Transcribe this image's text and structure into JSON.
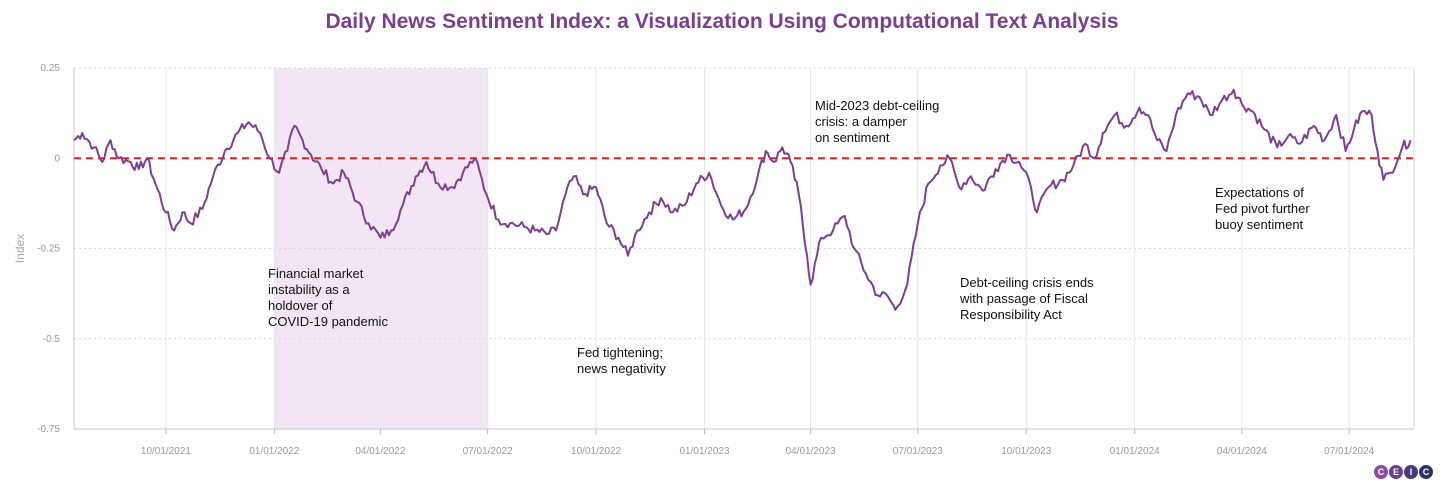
{
  "title": "Daily News Sentiment Index: a Visualization Using Computational Text Analysis",
  "logo": {
    "letters": [
      "C",
      "E",
      "I",
      "C"
    ],
    "colors": [
      "#8a4e9e",
      "#6a3f8c",
      "#4a3a7c",
      "#2f3168"
    ]
  },
  "chart_data": {
    "type": "line",
    "ylabel": "Index",
    "xlabel": "",
    "ylim": [
      -0.75,
      0.25
    ],
    "xlim": [
      "2021-07-15",
      "2024-08-25"
    ],
    "grid": true,
    "yticks": [
      0.25,
      0,
      -0.25,
      -0.5,
      -0.75
    ],
    "ytick_labels": [
      "0.25",
      "0",
      "-0.25",
      "-0.5",
      "-0.75"
    ],
    "xticks": [
      "2021-10-01",
      "2022-01-01",
      "2022-04-01",
      "2022-07-01",
      "2022-10-01",
      "2023-01-01",
      "2023-04-01",
      "2023-07-01",
      "2023-10-01",
      "2024-01-01",
      "2024-04-01",
      "2024-07-01"
    ],
    "xtick_labels": [
      "10/01/2021",
      "01/01/2022",
      "04/01/2022",
      "07/01/2022",
      "10/01/2022",
      "01/01/2023",
      "04/01/2023",
      "07/01/2023",
      "10/01/2023",
      "01/01/2024",
      "04/01/2024",
      "07/01/2024"
    ],
    "reference_line": {
      "y": 0,
      "color": "#e02020",
      "style": "dashed"
    },
    "shaded_region": {
      "x_start": "2022-01-01",
      "x_end": "2022-07-01",
      "color": "#f3e6f4"
    },
    "series": [
      {
        "color": "#7e3f91",
        "points": [
          [
            "2021-07-15",
            0.05
          ],
          [
            "2021-07-22",
            0.07
          ],
          [
            "2021-08-01",
            0.03
          ],
          [
            "2021-08-08",
            -0.01
          ],
          [
            "2021-08-15",
            0.05
          ],
          [
            "2021-08-22",
            0.0
          ],
          [
            "2021-09-01",
            -0.01
          ],
          [
            "2021-09-08",
            -0.03
          ],
          [
            "2021-09-15",
            0.0
          ],
          [
            "2021-09-22",
            -0.07
          ],
          [
            "2021-10-01",
            -0.15
          ],
          [
            "2021-10-08",
            -0.2
          ],
          [
            "2021-10-15",
            -0.15
          ],
          [
            "2021-10-22",
            -0.18
          ],
          [
            "2021-11-01",
            -0.14
          ],
          [
            "2021-11-10",
            -0.05
          ],
          [
            "2021-11-20",
            0.02
          ],
          [
            "2021-12-01",
            0.07
          ],
          [
            "2021-12-10",
            0.1
          ],
          [
            "2021-12-20",
            0.07
          ],
          [
            "2021-12-28",
            0.0
          ],
          [
            "2022-01-05",
            -0.04
          ],
          [
            "2022-01-12",
            0.02
          ],
          [
            "2022-01-18",
            0.09
          ],
          [
            "2022-01-25",
            0.05
          ],
          [
            "2022-02-01",
            0.01
          ],
          [
            "2022-02-10",
            -0.03
          ],
          [
            "2022-02-20",
            -0.07
          ],
          [
            "2022-03-01",
            -0.04
          ],
          [
            "2022-03-12",
            -0.12
          ],
          [
            "2022-03-22",
            -0.18
          ],
          [
            "2022-04-01",
            -0.22
          ],
          [
            "2022-04-10",
            -0.2
          ],
          [
            "2022-04-20",
            -0.13
          ],
          [
            "2022-05-01",
            -0.05
          ],
          [
            "2022-05-10",
            -0.01
          ],
          [
            "2022-05-20",
            -0.07
          ],
          [
            "2022-06-01",
            -0.08
          ],
          [
            "2022-06-10",
            -0.04
          ],
          [
            "2022-06-20",
            0.0
          ],
          [
            "2022-06-30",
            -0.1
          ],
          [
            "2022-07-10",
            -0.17
          ],
          [
            "2022-07-20",
            -0.18
          ],
          [
            "2022-08-01",
            -0.19
          ],
          [
            "2022-08-10",
            -0.2
          ],
          [
            "2022-08-20",
            -0.21
          ],
          [
            "2022-08-28",
            -0.2
          ],
          [
            "2022-09-05",
            -0.1
          ],
          [
            "2022-09-12",
            -0.05
          ],
          [
            "2022-09-20",
            -0.1
          ],
          [
            "2022-10-01",
            -0.08
          ],
          [
            "2022-10-10",
            -0.18
          ],
          [
            "2022-10-20",
            -0.22
          ],
          [
            "2022-10-28",
            -0.27
          ],
          [
            "2022-11-05",
            -0.2
          ],
          [
            "2022-11-15",
            -0.15
          ],
          [
            "2022-11-25",
            -0.11
          ],
          [
            "2022-12-05",
            -0.15
          ],
          [
            "2022-12-15",
            -0.13
          ],
          [
            "2022-12-25",
            -0.07
          ],
          [
            "2023-01-05",
            -0.04
          ],
          [
            "2023-01-15",
            -0.13
          ],
          [
            "2023-01-25",
            -0.17
          ],
          [
            "2023-02-05",
            -0.14
          ],
          [
            "2023-02-15",
            -0.05
          ],
          [
            "2023-02-22",
            0.02
          ],
          [
            "2023-03-01",
            -0.01
          ],
          [
            "2023-03-08",
            0.03
          ],
          [
            "2023-03-15",
            -0.01
          ],
          [
            "2023-03-22",
            -0.1
          ],
          [
            "2023-03-29",
            -0.27
          ],
          [
            "2023-04-01",
            -0.35
          ],
          [
            "2023-04-10",
            -0.22
          ],
          [
            "2023-04-20",
            -0.2
          ],
          [
            "2023-04-30",
            -0.16
          ],
          [
            "2023-05-08",
            -0.25
          ],
          [
            "2023-05-18",
            -0.32
          ],
          [
            "2023-05-28",
            -0.38
          ],
          [
            "2023-06-05",
            -0.38
          ],
          [
            "2023-06-12",
            -0.42
          ],
          [
            "2023-06-22",
            -0.35
          ],
          [
            "2023-07-01",
            -0.18
          ],
          [
            "2023-07-10",
            -0.07
          ],
          [
            "2023-07-20",
            -0.02
          ],
          [
            "2023-07-28",
            0.0
          ],
          [
            "2023-08-05",
            -0.08
          ],
          [
            "2023-08-15",
            -0.05
          ],
          [
            "2023-08-25",
            -0.09
          ],
          [
            "2023-09-05",
            -0.03
          ],
          [
            "2023-09-15",
            0.01
          ],
          [
            "2023-09-25",
            -0.01
          ],
          [
            "2023-10-05",
            -0.08
          ],
          [
            "2023-10-10",
            -0.15
          ],
          [
            "2023-10-20",
            -0.08
          ],
          [
            "2023-11-01",
            -0.06
          ],
          [
            "2023-11-10",
            -0.02
          ],
          [
            "2023-11-20",
            0.04
          ],
          [
            "2023-11-28",
            0.0
          ],
          [
            "2023-12-05",
            0.07
          ],
          [
            "2023-12-15",
            0.12
          ],
          [
            "2023-12-25",
            0.09
          ],
          [
            "2024-01-05",
            0.14
          ],
          [
            "2024-01-12",
            0.12
          ],
          [
            "2024-01-20",
            0.05
          ],
          [
            "2024-01-28",
            0.02
          ],
          [
            "2024-02-05",
            0.12
          ],
          [
            "2024-02-15",
            0.18
          ],
          [
            "2024-02-25",
            0.17
          ],
          [
            "2024-03-05",
            0.12
          ],
          [
            "2024-03-15",
            0.16
          ],
          [
            "2024-03-25",
            0.19
          ],
          [
            "2024-04-01",
            0.15
          ],
          [
            "2024-04-10",
            0.13
          ],
          [
            "2024-04-20",
            0.08
          ],
          [
            "2024-05-01",
            0.03
          ],
          [
            "2024-05-10",
            0.06
          ],
          [
            "2024-05-20",
            0.04
          ],
          [
            "2024-06-01",
            0.09
          ],
          [
            "2024-06-10",
            0.05
          ],
          [
            "2024-06-20",
            0.12
          ],
          [
            "2024-06-28",
            0.02
          ],
          [
            "2024-07-05",
            0.08
          ],
          [
            "2024-07-12",
            0.13
          ],
          [
            "2024-07-20",
            0.12
          ],
          [
            "2024-07-25",
            0.02
          ],
          [
            "2024-07-30",
            -0.06
          ],
          [
            "2024-08-05",
            -0.04
          ],
          [
            "2024-08-15",
            0.03
          ],
          [
            "2024-08-22",
            0.05
          ]
        ]
      }
    ],
    "annotations": [
      {
        "lines": [
          "Financial market",
          "instability as a",
          "holdover of",
          "COVID-19 pandemic"
        ]
      },
      {
        "lines": [
          "Fed tightening;",
          "news negativity"
        ]
      },
      {
        "lines": [
          "Mid-2023 debt-ceiling",
          "crisis: a damper",
          "on sentiment"
        ]
      },
      {
        "lines": [
          "Debt-ceiling crisis ends",
          "with passage of Fiscal",
          "Responsibility Act"
        ]
      },
      {
        "lines": [
          "Expectations of",
          "Fed pivot further",
          "buoy sentiment"
        ]
      }
    ]
  }
}
